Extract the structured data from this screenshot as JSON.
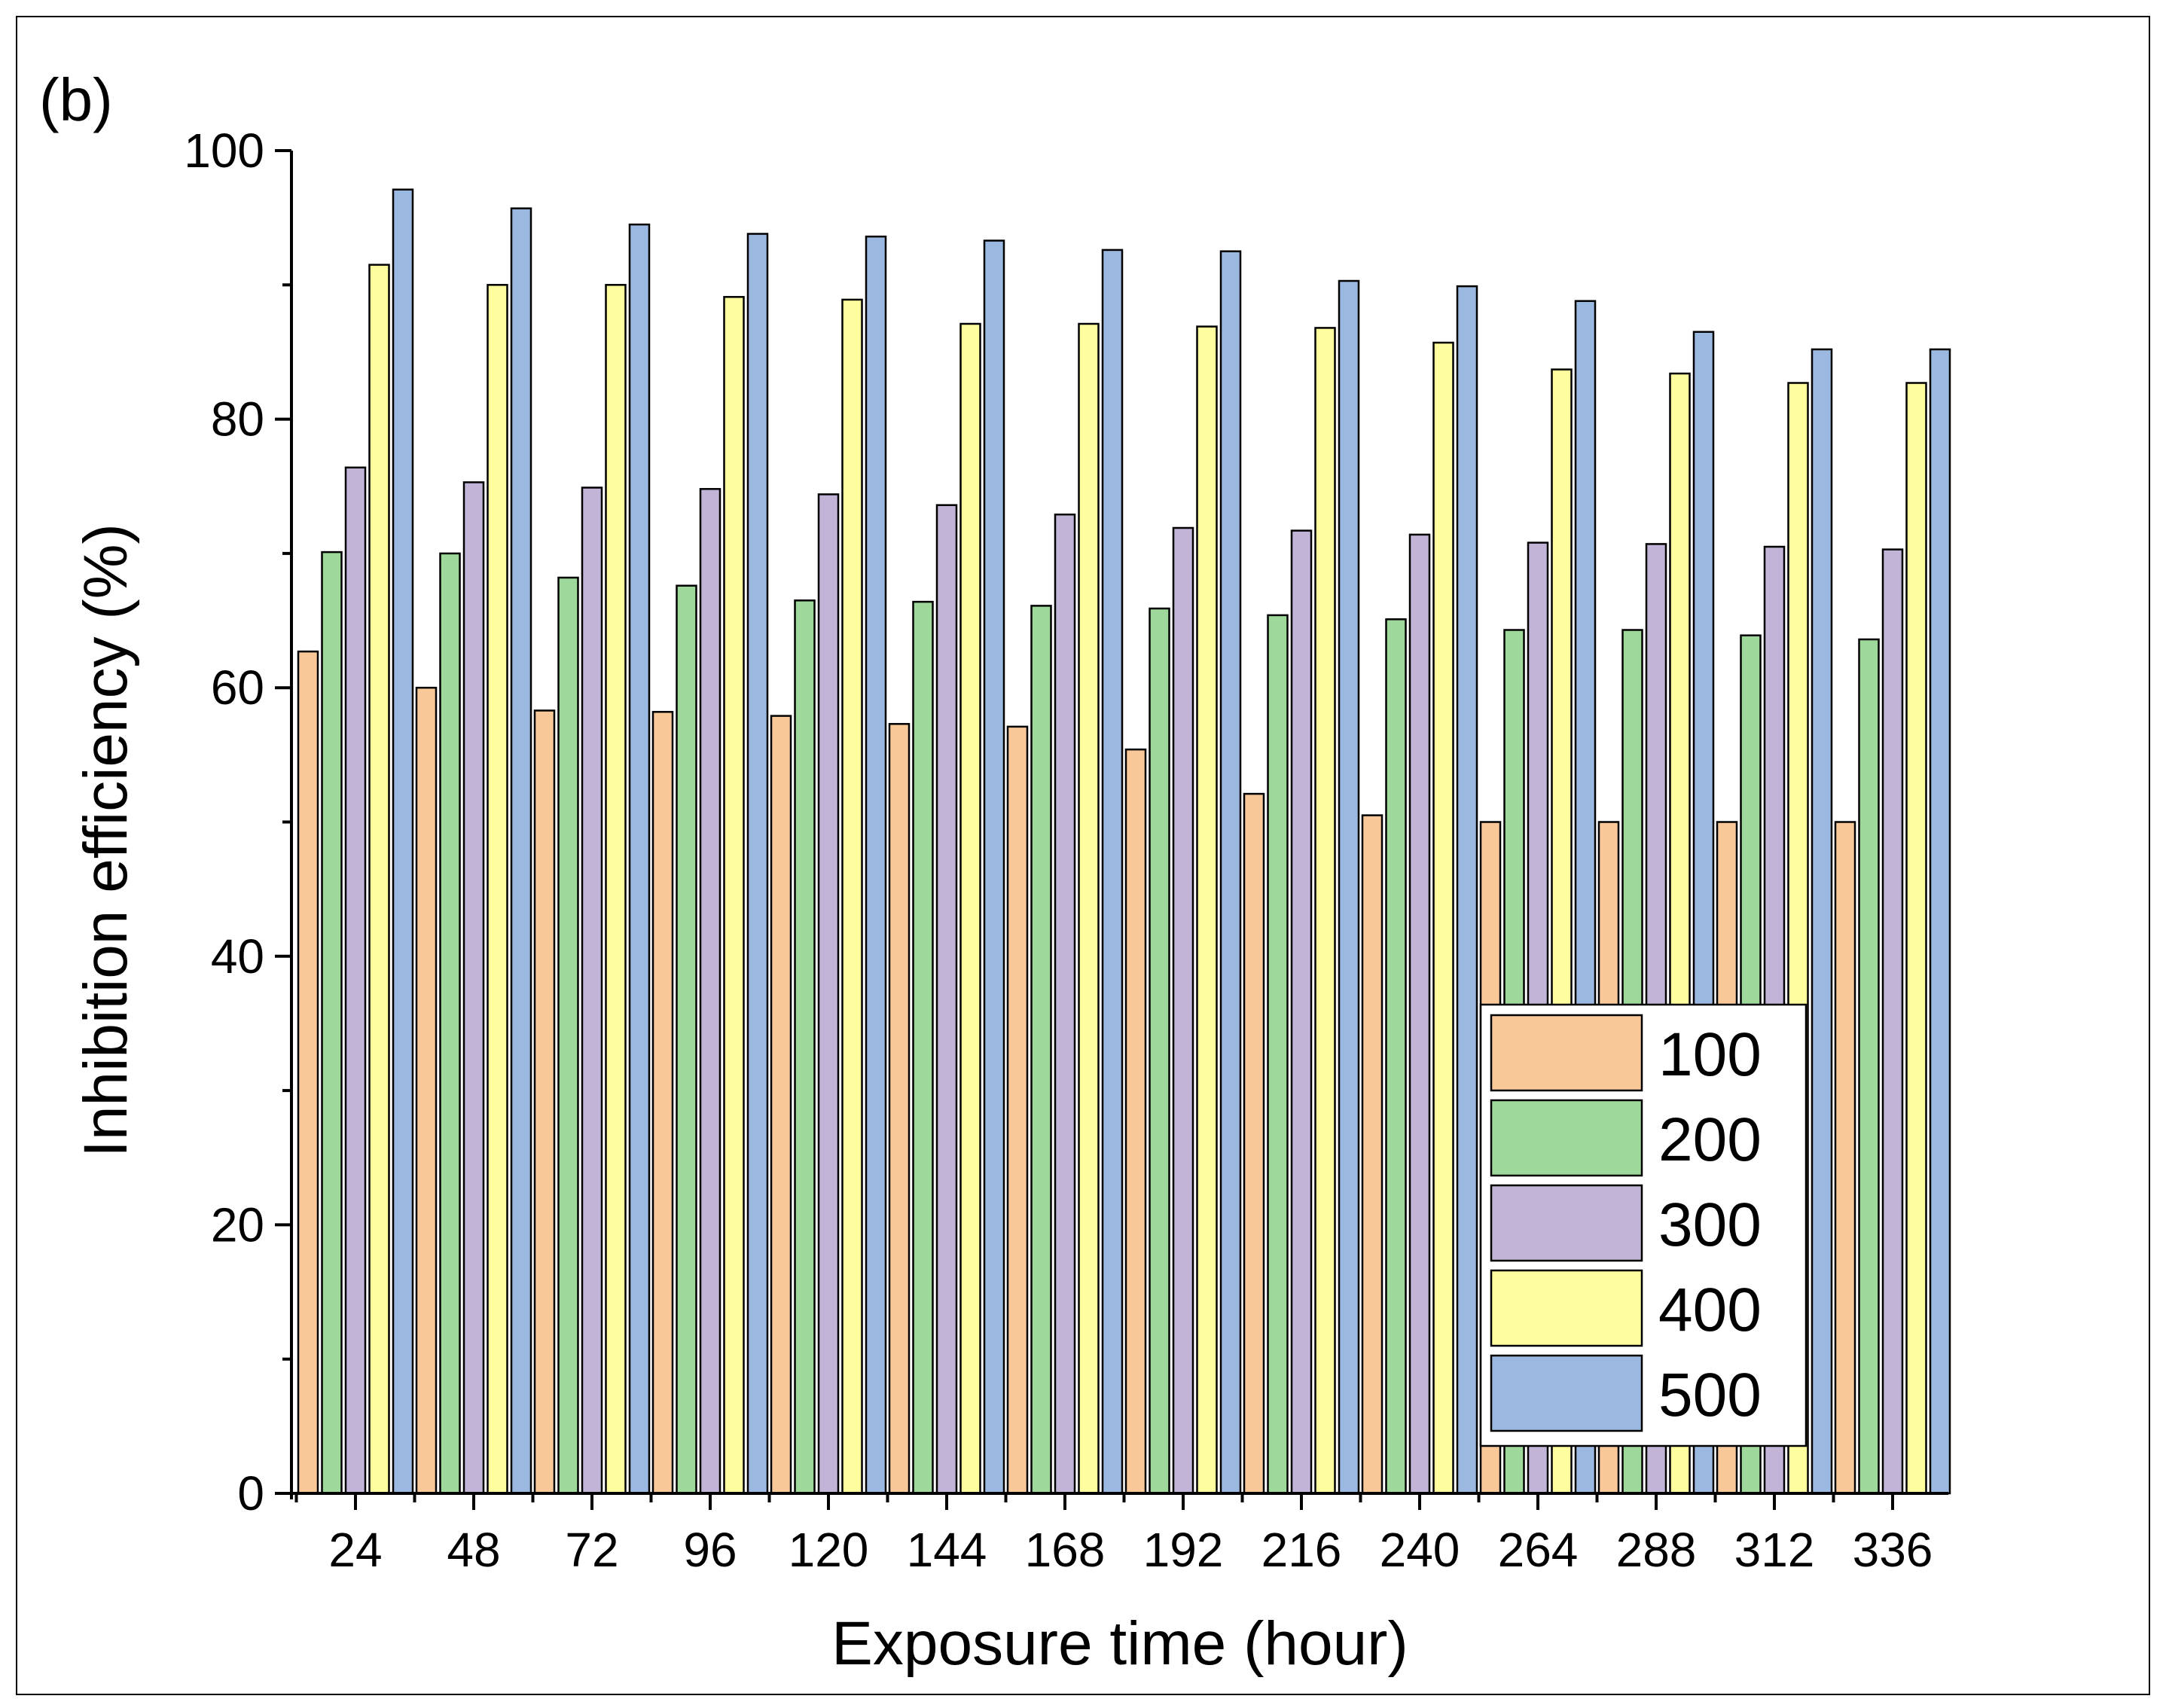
{
  "panel_label": "(b)",
  "colors": {
    "100": "#f9c898",
    "200": "#9ed89a",
    "300": "#c2b4d6",
    "400": "#fefe9e",
    "500": "#9ab8e0",
    "stroke": "#000000"
  },
  "chart_data": {
    "type": "bar",
    "xlabel": "Exposure time (hour)",
    "ylabel": "Inhibition efficiency (%)",
    "ylim": [
      0,
      100
    ],
    "yticks": [
      "0",
      "20",
      "40",
      "60",
      "80",
      "100"
    ],
    "grid": false,
    "legend_position": "bottom-right",
    "categories": [
      "24",
      "48",
      "72",
      "96",
      "120",
      "144",
      "168",
      "192",
      "216",
      "240",
      "264",
      "288",
      "312",
      "336"
    ],
    "series": [
      {
        "name": "100",
        "values": [
          62.7,
          60.0,
          58.3,
          58.2,
          57.9,
          57.3,
          57.1,
          55.4,
          52.1,
          50.5,
          50.0,
          50.0,
          50.0,
          50.0
        ]
      },
      {
        "name": "200",
        "values": [
          70.1,
          70.0,
          68.2,
          67.6,
          66.5,
          66.4,
          66.1,
          65.9,
          65.4,
          65.1,
          64.3,
          64.3,
          63.9,
          63.6
        ]
      },
      {
        "name": "300",
        "values": [
          76.4,
          75.3,
          74.9,
          74.8,
          74.4,
          73.6,
          72.9,
          71.9,
          71.7,
          71.4,
          70.8,
          70.7,
          70.5,
          70.3
        ]
      },
      {
        "name": "400",
        "values": [
          91.5,
          90.0,
          90.0,
          89.1,
          88.9,
          87.1,
          87.1,
          86.9,
          86.8,
          85.7,
          83.7,
          83.4,
          82.7,
          82.7
        ]
      },
      {
        "name": "500",
        "values": [
          97.1,
          95.7,
          94.5,
          93.8,
          93.6,
          93.3,
          92.6,
          92.5,
          90.3,
          89.9,
          88.8,
          86.5,
          85.2,
          85.2
        ]
      }
    ]
  }
}
